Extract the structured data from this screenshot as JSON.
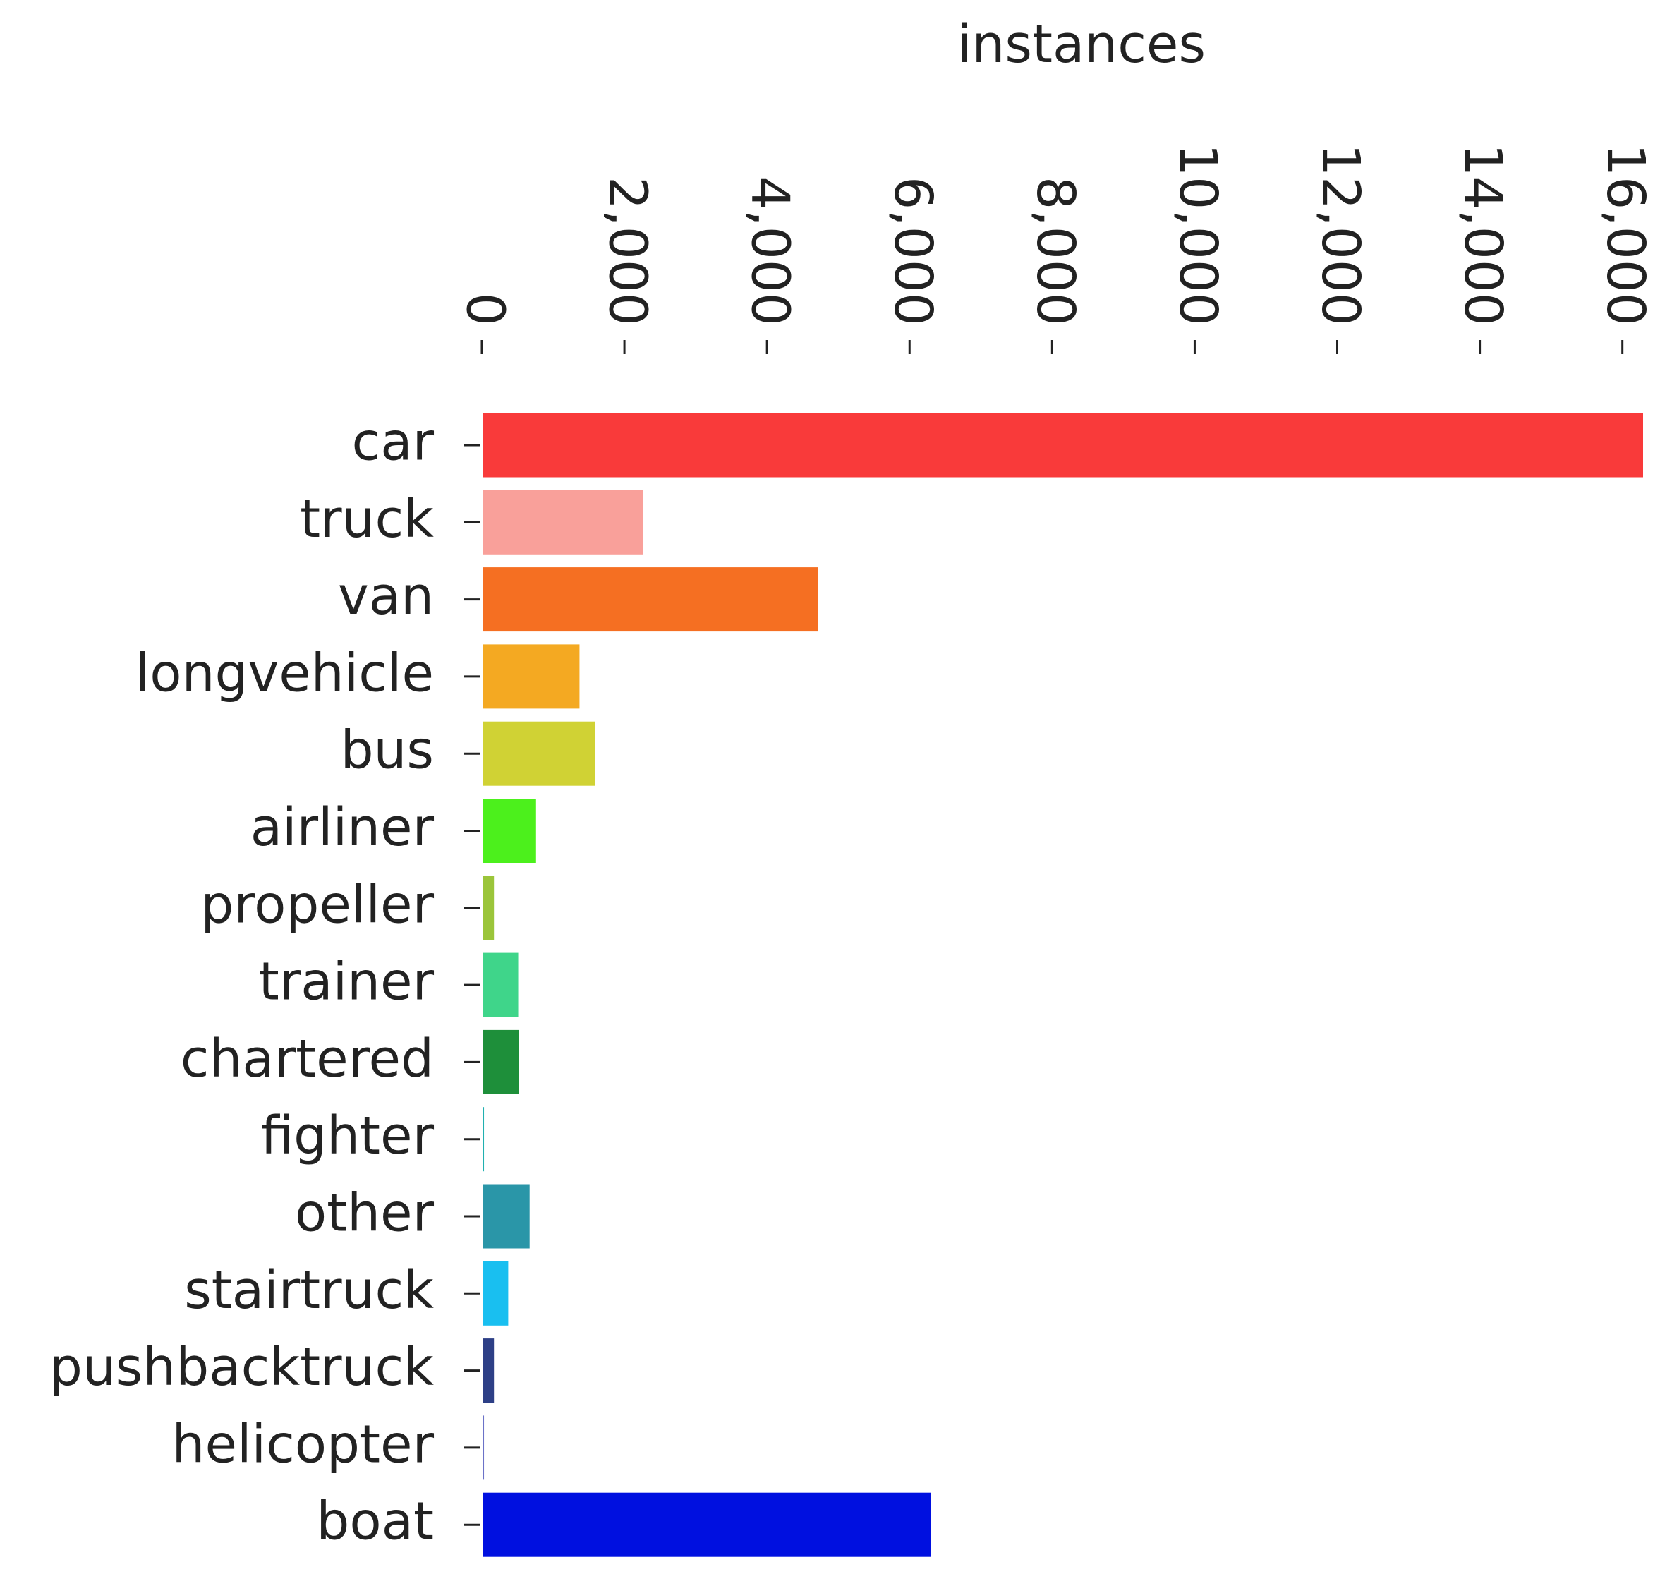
{
  "chart_data": {
    "type": "barh",
    "xlabel": "instances",
    "categories": [
      "car",
      "truck",
      "van",
      "longvehicle",
      "bus",
      "airliner",
      "propeller",
      "trainer",
      "chartered",
      "fighter",
      "other",
      "stairtruck",
      "pushbacktruck",
      "helicopter",
      "boat"
    ],
    "values": [
      16300,
      2270,
      4730,
      1380,
      1600,
      770,
      180,
      520,
      530,
      40,
      680,
      380,
      180,
      40,
      6310
    ],
    "colors": [
      "#f93a3a",
      "#f9a09a",
      "#f56f22",
      "#f4a922",
      "#d0d234",
      "#4cf01c",
      "#9bc53a",
      "#3fd58a",
      "#1e8f3a",
      "#20b0b0",
      "#2a96a8",
      "#19bff0",
      "#2d3f86",
      "#6b72c8",
      "#0010e0"
    ],
    "xlim": [
      0,
      16300
    ],
    "xticks": [
      0,
      {
        "value": 2000,
        "label": "2,000"
      },
      {
        "value": 4000,
        "label": "4,000"
      },
      {
        "value": 6000,
        "label": "6,000"
      },
      {
        "value": 8000,
        "label": "8,000"
      },
      {
        "value": 10000,
        "label": "10,000"
      },
      {
        "value": 12000,
        "label": "12,000"
      },
      {
        "value": 14000,
        "label": "14,000"
      },
      {
        "value": 16000,
        "label": "16,000"
      }
    ]
  }
}
